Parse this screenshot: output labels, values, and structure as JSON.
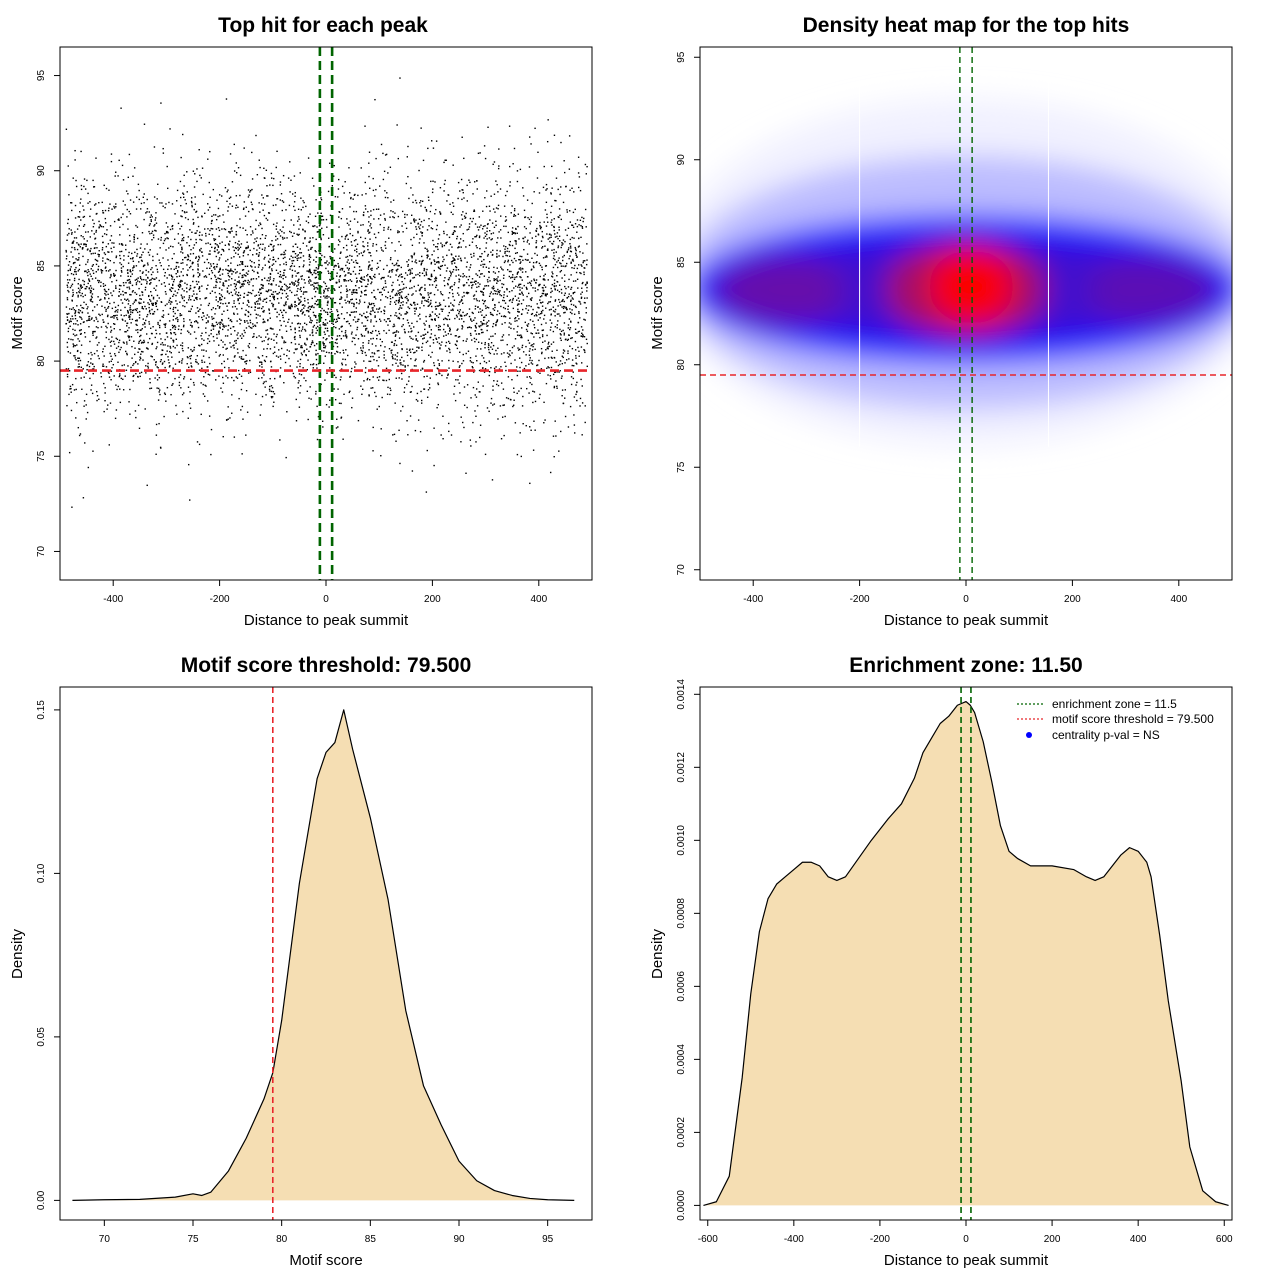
{
  "colors": {
    "threshold": "#e8262b",
    "enrichment": "#006400",
    "fill": "#f5deb3",
    "point": "#000000",
    "heat_low": "#0000ff",
    "heat_high": "#ff0000",
    "legend_dot": "#0000ff"
  },
  "chart_data": [
    {
      "type": "scatter",
      "title": "Top hit for each peak",
      "xlabel": "Distance to peak summit",
      "ylabel": "Motif score",
      "xlim": [
        -500,
        500
      ],
      "ylim": [
        68.5,
        96.5
      ],
      "xticks": [
        -400,
        -200,
        0,
        200,
        400
      ],
      "yticks": [
        70,
        75,
        80,
        85,
        90,
        95
      ],
      "x_range": [
        -490,
        490
      ],
      "y_center": 83.5,
      "y_spread": 3.2,
      "n_points": 6000,
      "hlines": [
        79.5
      ],
      "vlines": [
        -11.5,
        11.5
      ],
      "grid": false
    },
    {
      "type": "heatmap",
      "title": "Density heat map for the top hits",
      "xlabel": "Distance to peak summit",
      "ylabel": "Motif score",
      "xlim": [
        -500,
        500
      ],
      "ylim": [
        69.5,
        95.5
      ],
      "xticks": [
        -400,
        -200,
        0,
        200,
        400
      ],
      "yticks": [
        70,
        75,
        80,
        85,
        90,
        95
      ],
      "density_peak": {
        "x": 10,
        "y": 83.7
      },
      "hlines": [
        79.5
      ],
      "vlines": [
        -11.5,
        11.5
      ],
      "grid": false
    },
    {
      "type": "area",
      "title": "Motif score threshold: 79.500",
      "xlabel": "Motif score",
      "ylabel": "Density",
      "xlim": [
        67.5,
        97.5
      ],
      "ylim": [
        -0.006,
        0.157
      ],
      "xticks": [
        70,
        75,
        80,
        85,
        90,
        95
      ],
      "yticks": [
        0.0,
        0.05,
        0.1,
        0.15
      ],
      "ytick_labels": [
        "0.00",
        "0.05",
        "0.10",
        "0.15"
      ],
      "x": [
        68.2,
        70,
        72,
        74,
        75,
        75.5,
        76,
        77,
        78,
        79,
        79.5,
        80,
        81,
        82,
        82.5,
        83,
        83.5,
        84,
        85,
        86,
        87,
        88,
        89,
        90,
        91,
        92,
        93,
        94,
        95,
        96.5
      ],
      "values": [
        0.0,
        0.0002,
        0.0003,
        0.001,
        0.002,
        0.0015,
        0.0025,
        0.009,
        0.019,
        0.031,
        0.039,
        0.055,
        0.097,
        0.129,
        0.137,
        0.14,
        0.15,
        0.138,
        0.117,
        0.092,
        0.058,
        0.035,
        0.023,
        0.012,
        0.006,
        0.003,
        0.0015,
        0.0006,
        0.0002,
        0.0
      ],
      "vlines": [
        79.5
      ],
      "grid": false
    },
    {
      "type": "area",
      "title": "Enrichment zone: 11.50",
      "xlabel": "Distance to peak summit",
      "ylabel": "Density",
      "xlim": [
        -618,
        618
      ],
      "ylim": [
        -4e-05,
        0.00142
      ],
      "xticks": [
        -600,
        -400,
        -200,
        0,
        200,
        400,
        600
      ],
      "yticks": [
        0.0,
        0.0002,
        0.0004,
        0.0006,
        0.0008,
        0.001,
        0.0012,
        0.0014
      ],
      "ytick_labels": [
        "0.0000",
        "0.0002",
        "0.0004",
        "0.0006",
        "0.0008",
        "0.0010",
        "0.0012",
        "0.0014"
      ],
      "x": [
        -610,
        -580,
        -550,
        -520,
        -500,
        -480,
        -460,
        -440,
        -420,
        -400,
        -380,
        -360,
        -340,
        -320,
        -300,
        -280,
        -250,
        -220,
        -200,
        -180,
        -150,
        -120,
        -100,
        -80,
        -60,
        -40,
        -20,
        0,
        10,
        20,
        40,
        60,
        80,
        100,
        120,
        150,
        200,
        250,
        280,
        300,
        320,
        340,
        360,
        380,
        400,
        420,
        430,
        450,
        470,
        500,
        520,
        550,
        580,
        610
      ],
      "values": [
        0.0,
        1e-05,
        8e-05,
        0.00035,
        0.00058,
        0.00075,
        0.00084,
        0.00088,
        0.0009,
        0.00092,
        0.00094,
        0.00094,
        0.00093,
        0.0009,
        0.00089,
        0.0009,
        0.00095,
        0.001,
        0.00103,
        0.00106,
        0.0011,
        0.00117,
        0.00124,
        0.00128,
        0.00132,
        0.00134,
        0.00137,
        0.00138,
        0.00137,
        0.00135,
        0.00127,
        0.00116,
        0.00104,
        0.00097,
        0.00095,
        0.00093,
        0.00093,
        0.00092,
        0.0009,
        0.00089,
        0.0009,
        0.00093,
        0.00096,
        0.00098,
        0.00097,
        0.00094,
        0.0009,
        0.00074,
        0.00056,
        0.00034,
        0.00016,
        4e-05,
        1e-05,
        0.0
      ],
      "vlines": [
        -11.5,
        11.5
      ],
      "legend": [
        {
          "label": "enrichment zone = 11.5",
          "style": "dotted",
          "color": "#006400"
        },
        {
          "label": "motif score threshold = 79.500",
          "style": "dotted",
          "color": "#e8262b"
        },
        {
          "label": "centrality p-val = NS",
          "style": "dot",
          "color": "#0000ff"
        }
      ],
      "legend_position": "top-right",
      "grid": false
    }
  ]
}
